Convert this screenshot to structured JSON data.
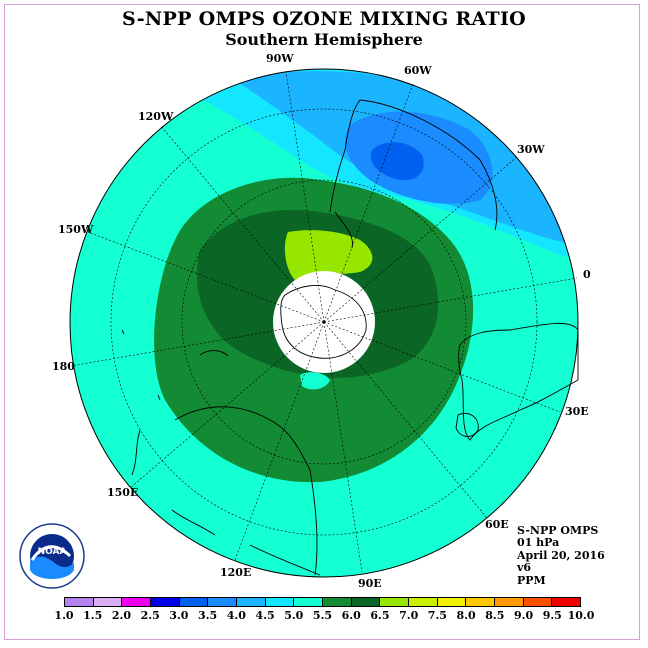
{
  "title": "S-NPP OMPS OZONE MIXING RATIO",
  "subtitle": "Southern Hemisphere",
  "longitude_labels": [
    "90W",
    "60W",
    "30W",
    "0",
    "30E",
    "60E",
    "90E",
    "120E",
    "150E",
    "180",
    "150W",
    "120W"
  ],
  "info": {
    "instrument": "S-NPP OMPS",
    "level": "01 hPa",
    "date": "April 20, 2016",
    "version": "v6",
    "unit": "PPM"
  },
  "logo_text": "NOAA",
  "colorbar": {
    "ticks": [
      "1.0",
      "1.5",
      "2.0",
      "2.5",
      "3.0",
      "3.5",
      "4.0",
      "4.5",
      "5.0",
      "5.5",
      "6.0",
      "6.5",
      "7.0",
      "7.5",
      "8.0",
      "8.5",
      "9.0",
      "9.5",
      "10.0"
    ],
    "colors": [
      "#b383f0",
      "#d9aef5",
      "#f000f0",
      "#0000e6",
      "#0060f0",
      "#1a8cff",
      "#1ab4ff",
      "#14e6ff",
      "#14ffd2",
      "#138a34",
      "#0b6626",
      "#96e600",
      "#c8f000",
      "#f0f000",
      "#ffc800",
      "#ff9b00",
      "#ff5000",
      "#f00000",
      "#8c5032"
    ]
  }
}
